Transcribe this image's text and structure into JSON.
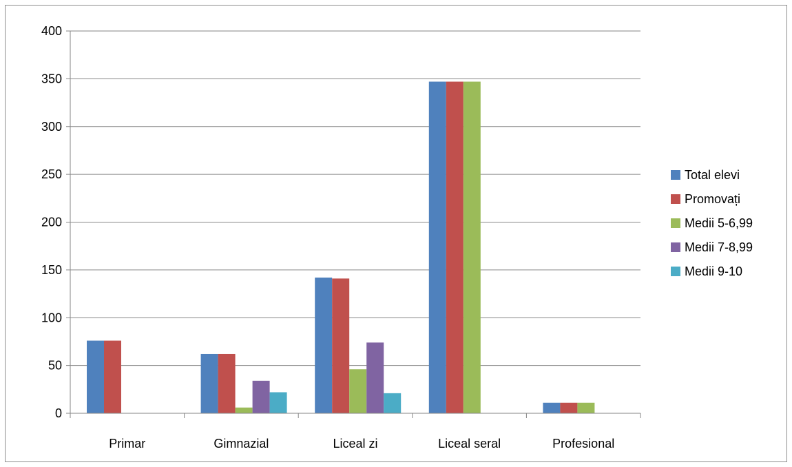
{
  "chart_data": {
    "type": "bar",
    "title": "",
    "xlabel": "",
    "ylabel": "",
    "categories": [
      "Primar",
      "Gimnazial",
      "Liceal zi",
      "Liceal seral",
      "Profesional"
    ],
    "ylim": [
      0,
      400
    ],
    "yticks": [
      0,
      50,
      100,
      150,
      200,
      250,
      300,
      350,
      400
    ],
    "grid": true,
    "legend_position": "right",
    "series": [
      {
        "name": "Total elevi",
        "color": "#4f81bd",
        "values": [
          76,
          62,
          142,
          347,
          11
        ]
      },
      {
        "name": "Promovați",
        "color": "#c0504d",
        "values": [
          76,
          62,
          141,
          347,
          11
        ]
      },
      {
        "name": "Medii 5-6,99",
        "color": "#9bbb59",
        "values": [
          0,
          6,
          46,
          347,
          11
        ]
      },
      {
        "name": "Medii 7-8,99",
        "color": "#8064a2",
        "values": [
          0,
          34,
          74,
          0,
          0
        ]
      },
      {
        "name": "Medii 9-10",
        "color": "#4bacc6",
        "values": [
          0,
          22,
          21,
          0,
          0
        ]
      }
    ]
  }
}
